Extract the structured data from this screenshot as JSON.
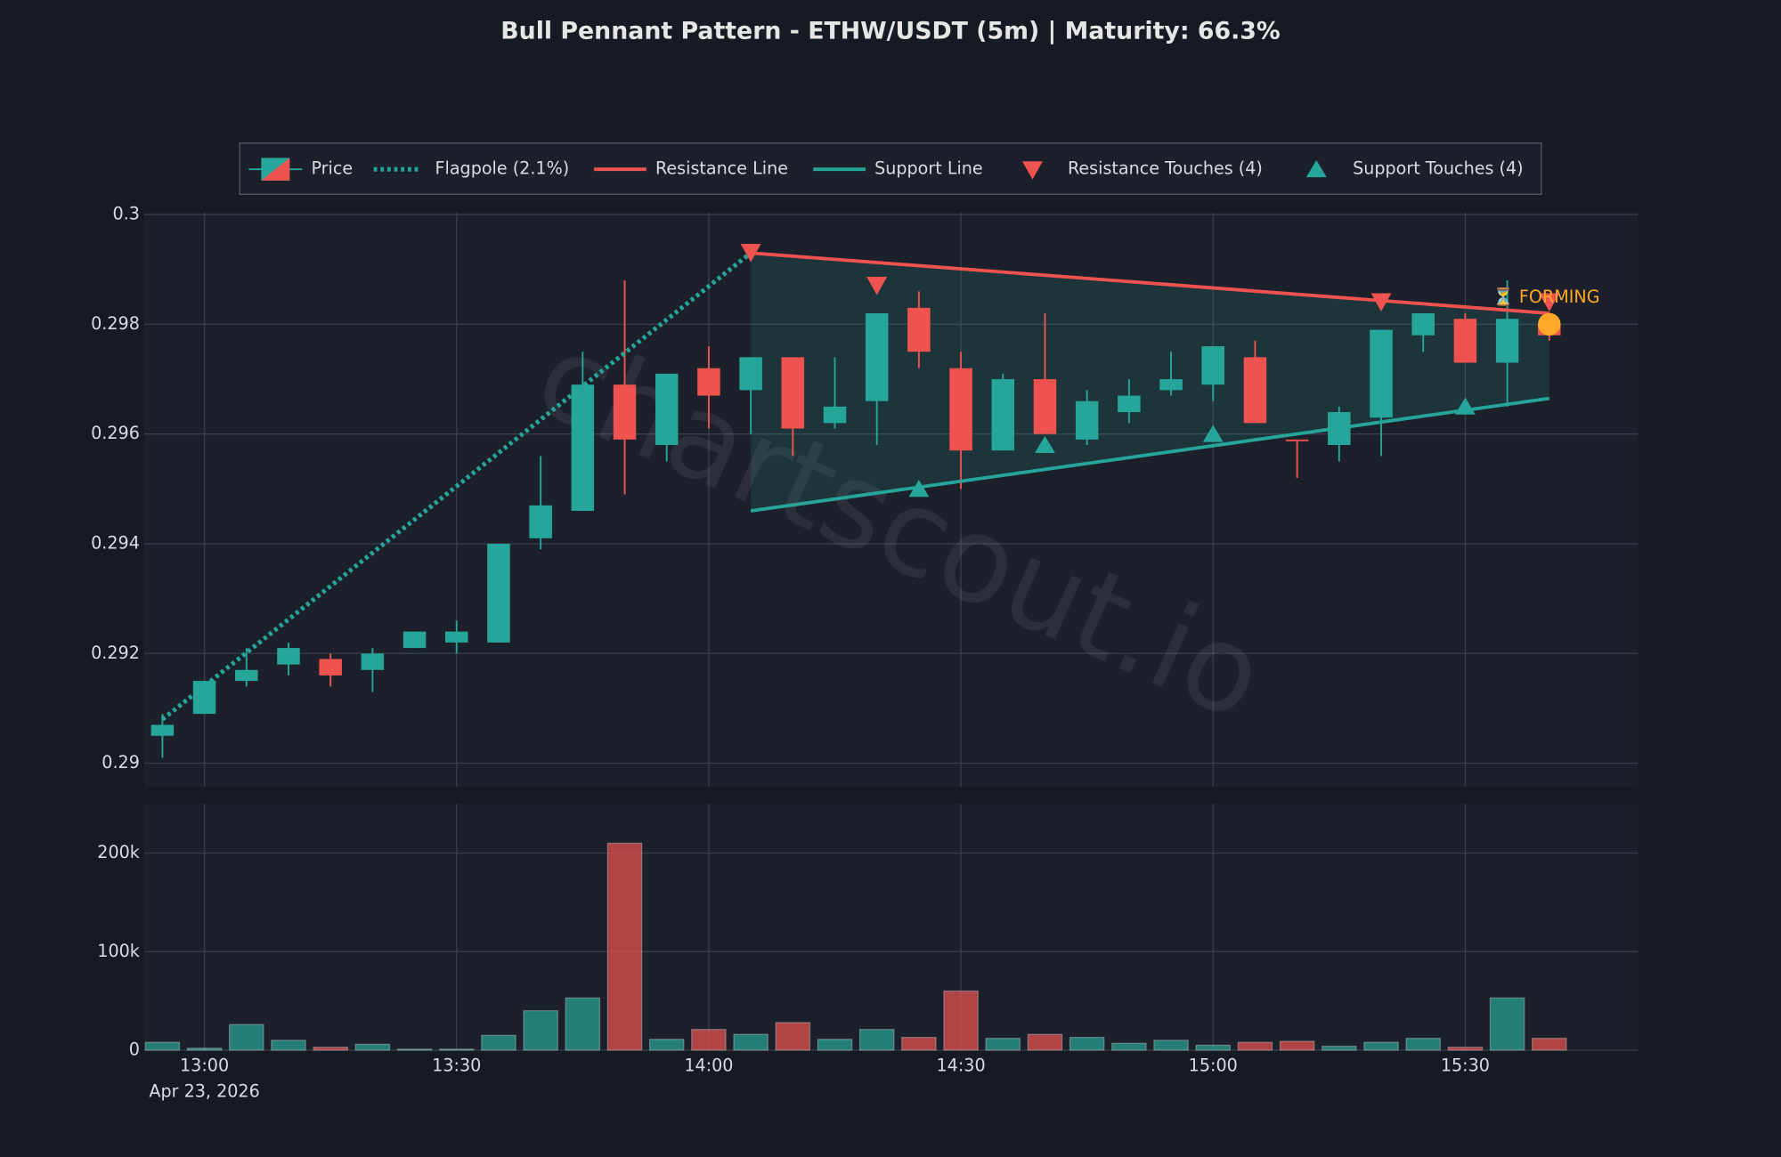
{
  "chart_data": {
    "type": "candlestick",
    "title": "Bull Pennant Pattern - ETHW/USDT (5m) | Maturity: 66.3%",
    "watermark": "chartscout.io",
    "x": [
      "12:55",
      "13:00",
      "13:05",
      "13:10",
      "13:15",
      "13:20",
      "13:25",
      "13:30",
      "13:35",
      "13:40",
      "13:45",
      "13:50",
      "13:55",
      "14:00",
      "14:05",
      "14:10",
      "14:15",
      "14:20",
      "14:25",
      "14:30",
      "14:35",
      "14:40",
      "14:45",
      "14:50",
      "14:55",
      "15:00",
      "15:05",
      "15:10",
      "15:15",
      "15:20",
      "15:25",
      "15:30",
      "15:35",
      "15:40"
    ],
    "x_date_label": "Apr 23, 2026",
    "xticks": [
      "13:00",
      "13:30",
      "14:00",
      "14:30",
      "15:00",
      "15:30"
    ],
    "open": [
      0.2905,
      0.2909,
      0.2915,
      0.2918,
      0.2919,
      0.2917,
      0.2921,
      0.2922,
      0.2922,
      0.2941,
      0.2946,
      0.2969,
      0.2958,
      0.2972,
      0.2968,
      0.2974,
      0.2962,
      0.2966,
      0.2983,
      0.2972,
      0.2957,
      0.297,
      0.2959,
      0.2964,
      0.2968,
      0.2969,
      0.2974,
      0.2959,
      0.2958,
      0.2963,
      0.2978,
      0.2981,
      0.2973,
      0.298
    ],
    "high": [
      0.2909,
      0.2915,
      0.2921,
      0.2922,
      0.292,
      0.2921,
      0.2924,
      0.2926,
      0.294,
      0.2956,
      0.2975,
      0.2988,
      0.2971,
      0.2976,
      0.2974,
      0.2974,
      0.2974,
      0.2982,
      0.2986,
      0.2975,
      0.2971,
      0.2982,
      0.2968,
      0.297,
      0.2975,
      0.2976,
      0.2977,
      0.2959,
      0.2965,
      0.2979,
      0.2982,
      0.2982,
      0.2988,
      0.2982
    ],
    "low": [
      0.2901,
      0.2909,
      0.2914,
      0.2916,
      0.2914,
      0.2913,
      0.2921,
      0.292,
      0.2922,
      0.2939,
      0.2946,
      0.2949,
      0.2955,
      0.2961,
      0.296,
      0.2956,
      0.2961,
      0.2958,
      0.2972,
      0.295,
      0.2957,
      0.296,
      0.2958,
      0.2962,
      0.2967,
      0.2966,
      0.2962,
      0.2952,
      0.2955,
      0.2956,
      0.2975,
      0.2973,
      0.2965,
      0.2977
    ],
    "close": [
      0.2907,
      0.2915,
      0.2917,
      0.2921,
      0.2916,
      0.292,
      0.2924,
      0.2924,
      0.294,
      0.2947,
      0.2969,
      0.2959,
      0.2971,
      0.2967,
      0.2974,
      0.2961,
      0.2965,
      0.2982,
      0.2975,
      0.2957,
      0.297,
      0.296,
      0.2966,
      0.2967,
      0.297,
      0.2976,
      0.2962,
      0.29588,
      0.2964,
      0.2979,
      0.2982,
      0.2973,
      0.2981,
      0.2978
    ],
    "volume": [
      8000,
      2000,
      26000,
      10000,
      3000,
      6000,
      1000,
      1000,
      15000,
      40000,
      53000,
      210000,
      11000,
      21000,
      16000,
      28000,
      11000,
      21000,
      13000,
      60000,
      12000,
      16000,
      13000,
      7000,
      10000,
      5000,
      8000,
      9000,
      4000,
      8000,
      12000,
      3000,
      53000,
      12000
    ],
    "up_color": "#26a69a",
    "down_color": "#ef5350",
    "price_name": "Price",
    "ylim": [
      0.28957,
      0.30004
    ],
    "yticks": [
      0.29,
      0.292,
      0.294,
      0.296,
      0.298,
      0.3
    ],
    "volume_ylim": [
      0,
      250000
    ],
    "volume_yticks": [
      0,
      {
        "value": 100000,
        "label": "100k"
      },
      {
        "value": 200000,
        "label": "200k"
      }
    ],
    "grid": true,
    "flagpole": {
      "name": "Flagpole (2.1%)",
      "color": "#26a69a",
      "x": [
        "12:55",
        "14:05"
      ],
      "y": [
        0.2908,
        0.2993
      ]
    },
    "resistance": {
      "name": "Resistance Line",
      "color": "#ef5350",
      "x": [
        "14:05",
        "15:40"
      ],
      "y": [
        0.2993,
        0.2982
      ]
    },
    "support": {
      "name": "Support Line",
      "color": "#26a69a",
      "x": [
        "14:05",
        "15:40"
      ],
      "y": [
        0.2946,
        0.29665
      ]
    },
    "resistance_touches": {
      "name": "Resistance Touches (4)",
      "color": "#ef5350",
      "x": [
        "14:05",
        "14:20",
        "15:20",
        "15:40"
      ],
      "y": [
        0.2993,
        0.2987,
        0.2984,
        0.2984
      ]
    },
    "support_touches": {
      "name": "Support Touches (4)",
      "color": "#26a69a",
      "x": [
        "14:25",
        "14:40",
        "15:00",
        "15:30"
      ],
      "y": [
        0.295,
        0.2958,
        0.296,
        0.2965
      ]
    },
    "status": {
      "label": "⏳ FORMING",
      "color": "#ffa726",
      "x": "15:40",
      "y": 0.298
    }
  }
}
